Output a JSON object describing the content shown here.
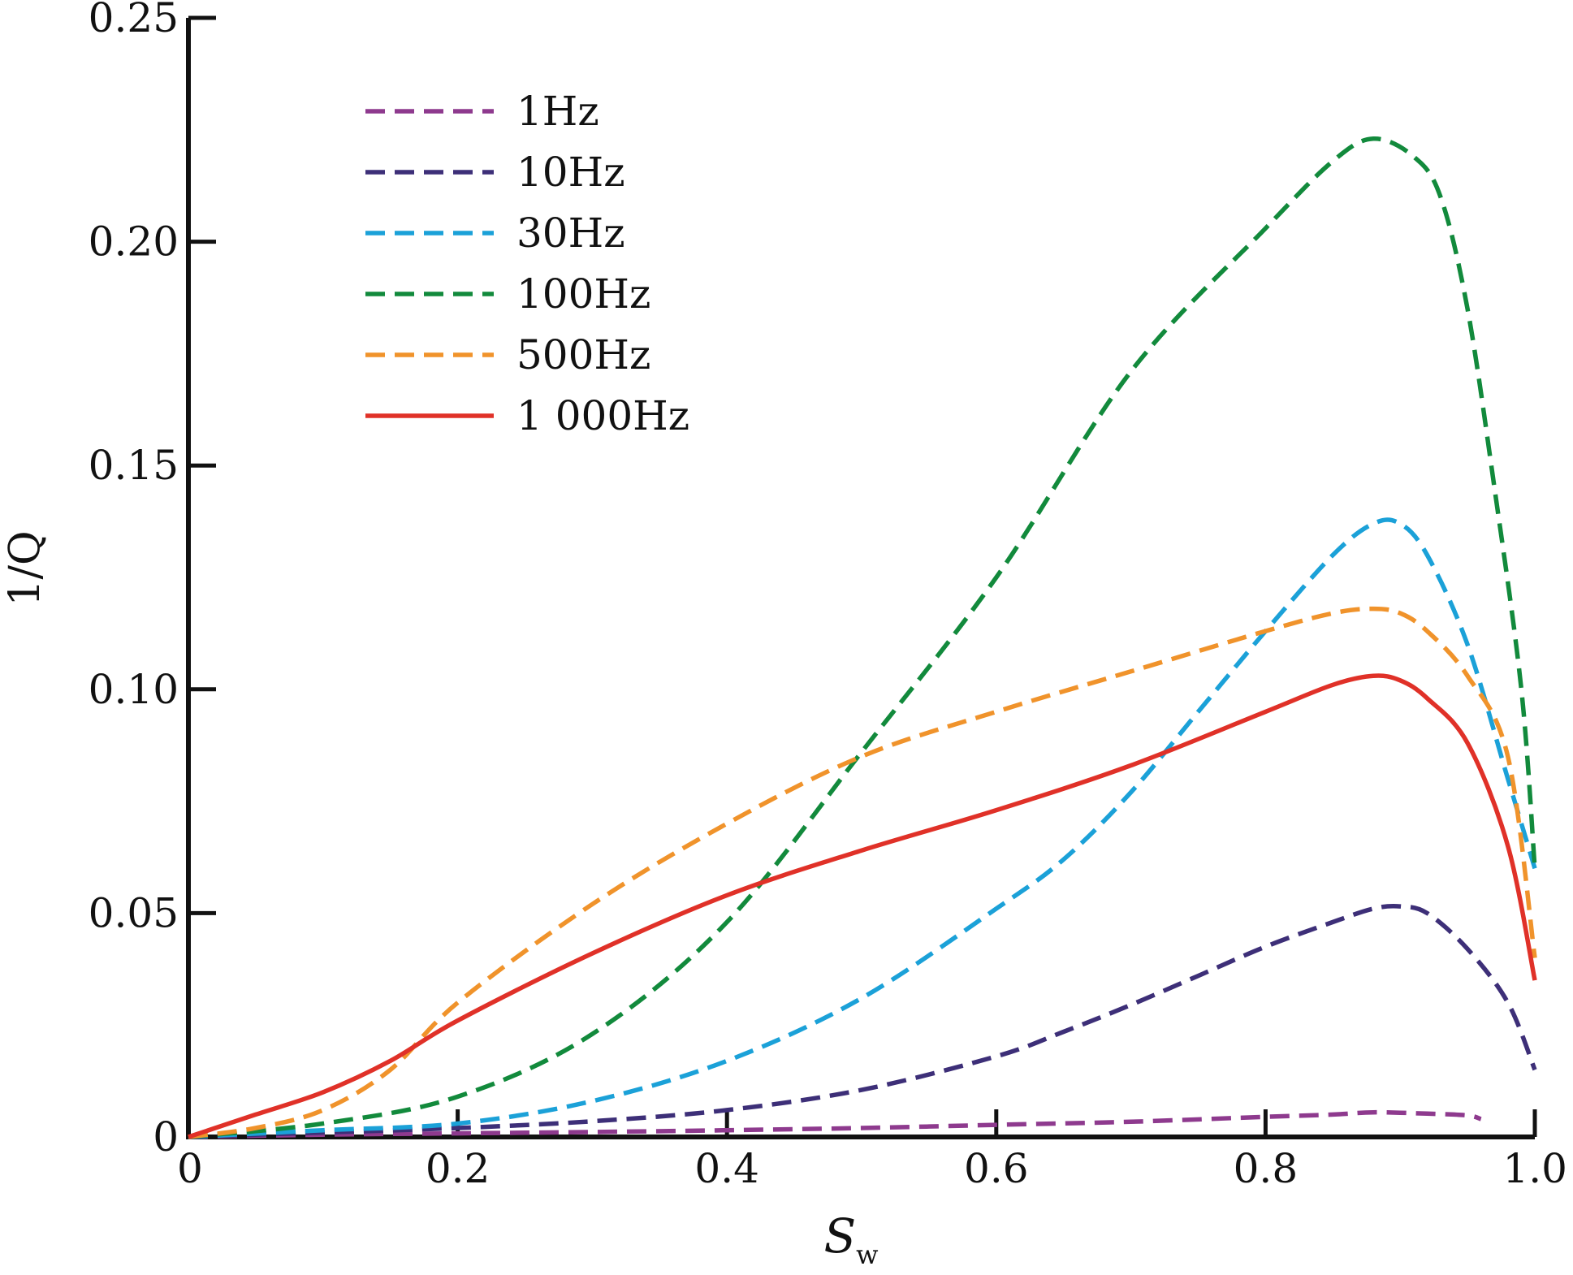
{
  "chart_data": {
    "type": "line",
    "title": "",
    "xlabel_main": "S",
    "xlabel_sub": "w",
    "ylabel": "1/Q",
    "xlim": [
      0,
      1.0
    ],
    "ylim": [
      0,
      0.25
    ],
    "xticks": [
      0,
      0.2,
      0.4,
      0.6,
      0.8,
      1.0
    ],
    "xtick_labels": [
      "0",
      "0.2",
      "0.4",
      "0.6",
      "0.8",
      "1.0"
    ],
    "yticks": [
      0,
      0.05,
      0.1,
      0.15,
      0.2,
      0.25
    ],
    "ytick_labels": [
      "0",
      "0.05",
      "0.10",
      "0.15",
      "0.20",
      "0.25"
    ],
    "grid": false,
    "legend_position": "top-left",
    "series": [
      {
        "name": "1Hz",
        "color": "#8e3a8e",
        "dash": "dashed",
        "x": [
          0,
          0.1,
          0.2,
          0.3,
          0.4,
          0.5,
          0.6,
          0.7,
          0.8,
          0.85,
          0.88,
          0.92,
          0.95,
          0.96
        ],
        "y": [
          0,
          0.0005,
          0.0008,
          0.0011,
          0.0015,
          0.002,
          0.0027,
          0.0034,
          0.0045,
          0.005,
          0.0055,
          0.0052,
          0.0048,
          0.004
        ]
      },
      {
        "name": "10Hz",
        "color": "#3d2f78",
        "dash": "dashed",
        "x": [
          0,
          0.1,
          0.2,
          0.3,
          0.4,
          0.5,
          0.6,
          0.65,
          0.7,
          0.75,
          0.8,
          0.85,
          0.88,
          0.9,
          0.92,
          0.95,
          0.98,
          1.0
        ],
        "y": [
          0,
          0.001,
          0.002,
          0.0035,
          0.006,
          0.0105,
          0.018,
          0.0235,
          0.0295,
          0.036,
          0.0425,
          0.048,
          0.051,
          0.0515,
          0.05,
          0.042,
          0.03,
          0.015
        ]
      },
      {
        "name": "30Hz",
        "color": "#1ba1d8",
        "dash": "dashed",
        "x": [
          0,
          0.1,
          0.2,
          0.3,
          0.4,
          0.5,
          0.6,
          0.65,
          0.7,
          0.75,
          0.8,
          0.85,
          0.88,
          0.9,
          0.92,
          0.95,
          0.98,
          1.0
        ],
        "y": [
          0,
          0.0015,
          0.003,
          0.008,
          0.017,
          0.031,
          0.051,
          0.062,
          0.077,
          0.095,
          0.113,
          0.13,
          0.137,
          0.137,
          0.13,
          0.11,
          0.08,
          0.06
        ]
      },
      {
        "name": "100Hz",
        "color": "#128a3c",
        "dash": "dashed",
        "x": [
          0,
          0.1,
          0.2,
          0.3,
          0.4,
          0.5,
          0.6,
          0.7,
          0.8,
          0.85,
          0.88,
          0.91,
          0.93,
          0.95,
          0.97,
          0.99,
          1.0
        ],
        "y": [
          0,
          0.003,
          0.009,
          0.023,
          0.048,
          0.086,
          0.125,
          0.171,
          0.203,
          0.218,
          0.223,
          0.219,
          0.21,
          0.185,
          0.145,
          0.1,
          0.06
        ]
      },
      {
        "name": "500Hz",
        "color": "#f0932b",
        "dash": "dashed",
        "x": [
          0,
          0.05,
          0.1,
          0.15,
          0.2,
          0.3,
          0.4,
          0.5,
          0.6,
          0.7,
          0.8,
          0.85,
          0.88,
          0.9,
          0.92,
          0.95,
          0.98,
          1.0
        ],
        "y": [
          0,
          0.002,
          0.006,
          0.015,
          0.03,
          0.052,
          0.07,
          0.085,
          0.095,
          0.104,
          0.113,
          0.117,
          0.118,
          0.117,
          0.113,
          0.103,
          0.085,
          0.04
        ]
      },
      {
        "name": "1 000Hz",
        "color": "#e03128",
        "dash": "solid",
        "x": [
          0,
          0.05,
          0.1,
          0.15,
          0.2,
          0.3,
          0.4,
          0.5,
          0.6,
          0.7,
          0.8,
          0.85,
          0.88,
          0.9,
          0.92,
          0.95,
          0.98,
          1.0
        ],
        "y": [
          0,
          0.005,
          0.01,
          0.017,
          0.026,
          0.041,
          0.054,
          0.064,
          0.073,
          0.083,
          0.095,
          0.101,
          0.103,
          0.102,
          0.098,
          0.088,
          0.065,
          0.035
        ]
      }
    ]
  }
}
